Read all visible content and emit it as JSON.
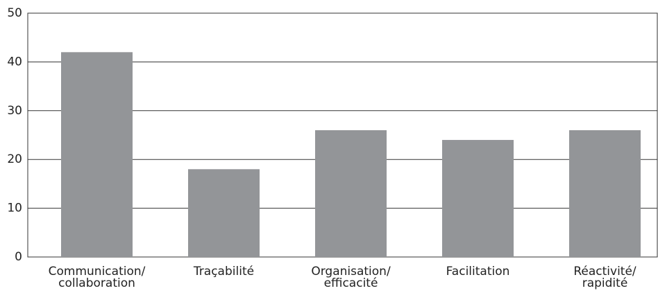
{
  "chart_data": {
    "type": "bar",
    "categories": [
      "Communication/ collaboration",
      "Traçabilité",
      "Organisation/ efficacité",
      "Facilitation",
      "Réactivité/ rapidité"
    ],
    "values": [
      42,
      18,
      26,
      24,
      26
    ],
    "color": "#939598",
    "ylim": [
      0,
      50
    ],
    "yticks": [
      0,
      10,
      20,
      30,
      40,
      50
    ],
    "grid": true
  }
}
